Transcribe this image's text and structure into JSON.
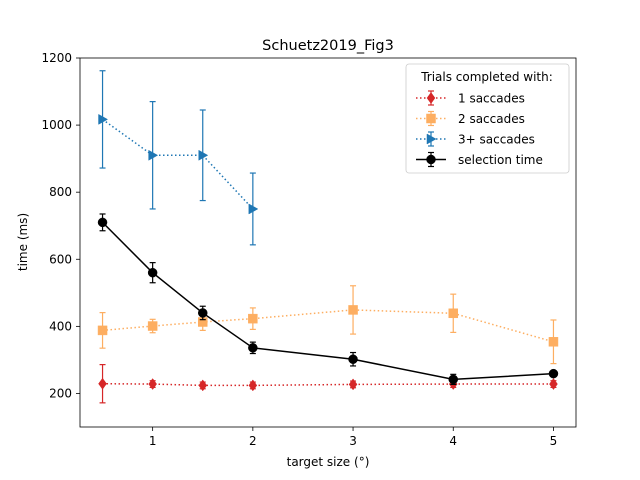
{
  "chart_data": {
    "type": "line",
    "title": "Schuetz2019_Fig3",
    "xlabel": "target size (°)",
    "ylabel": "time (ms)",
    "xlim": [
      0.275,
      5.225
    ],
    "ylim": [
      100,
      1200
    ],
    "xticks": [
      1,
      2,
      3,
      4,
      5
    ],
    "yticks": [
      200,
      400,
      600,
      800,
      1000,
      1200
    ],
    "grid": false,
    "legend": {
      "title": "Trials completed with:",
      "position": "top-right"
    },
    "series": [
      {
        "name": "1 saccades",
        "color": "#d62728",
        "marker": "diamond",
        "linestyle": "dotted",
        "x": [
          0.5,
          1,
          1.5,
          2,
          3,
          4,
          5
        ],
        "y": [
          229,
          228,
          224,
          224,
          227,
          228,
          228
        ],
        "err_low": [
          57,
          10,
          10,
          10,
          10,
          10,
          10
        ],
        "err_high": [
          57,
          10,
          10,
          10,
          10,
          10,
          10
        ]
      },
      {
        "name": "2 saccades",
        "color": "#fdae61",
        "marker": "square",
        "linestyle": "dotted",
        "x": [
          0.5,
          1,
          1.5,
          2,
          3,
          4,
          5
        ],
        "y": [
          388,
          401,
          413,
          423,
          449,
          439,
          354
        ],
        "err_low": [
          53,
          20,
          25,
          32,
          72,
          57,
          65
        ],
        "err_high": [
          53,
          20,
          25,
          32,
          72,
          57,
          65
        ]
      },
      {
        "name": "3+ saccades",
        "color": "#1f77b4",
        "marker": "triangle-right",
        "linestyle": "dotted",
        "x": [
          0.5,
          1,
          1.5,
          2
        ],
        "y": [
          1017,
          910,
          910,
          750
        ],
        "err_low": [
          145,
          160,
          135,
          107
        ],
        "err_high": [
          145,
          160,
          135,
          107
        ]
      },
      {
        "name": "selection time",
        "color": "#000000",
        "marker": "circle",
        "linestyle": "solid",
        "x": [
          0.5,
          1,
          1.5,
          2,
          3,
          4,
          5
        ],
        "y": [
          710,
          560,
          440,
          336,
          302,
          242,
          259
        ],
        "err_low": [
          25,
          30,
          20,
          17,
          20,
          15,
          8
        ],
        "err_high": [
          25,
          30,
          20,
          17,
          20,
          15,
          8
        ]
      }
    ]
  }
}
